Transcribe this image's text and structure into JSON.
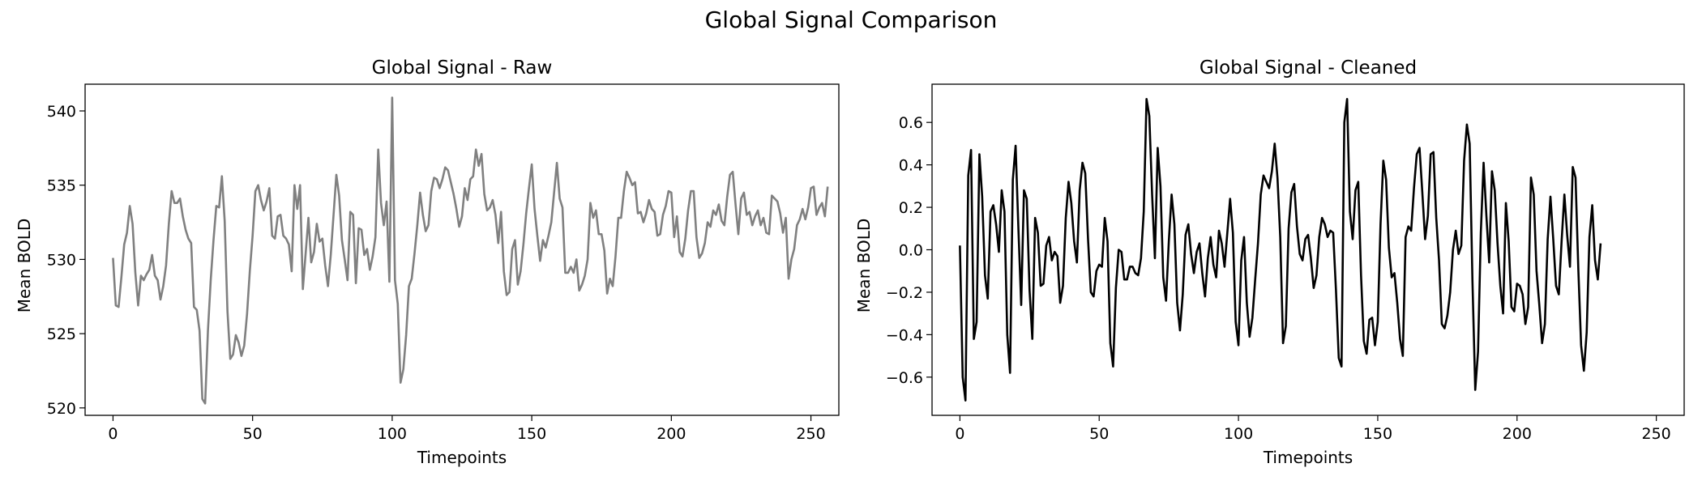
{
  "figure": {
    "title": "Global Signal Comparison"
  },
  "chart_data": [
    {
      "type": "line",
      "title": "Global Signal - Raw",
      "xlabel": "Timepoints",
      "ylabel": "Mean BOLD",
      "xlim": [
        -10,
        260
      ],
      "ylim": [
        519.5,
        541.8
      ],
      "xticks": [
        0,
        50,
        100,
        150,
        200,
        250
      ],
      "yticks": [
        520,
        525,
        530,
        535,
        540
      ],
      "xtick_labels": [
        "0",
        "50",
        "100",
        "150",
        "200",
        "250"
      ],
      "ytick_labels": [
        "520",
        "525",
        "530",
        "535",
        "540"
      ],
      "grid": false,
      "line_color": "#808080",
      "x_start": 0,
      "x_step": 1,
      "series": [
        {
          "values": [
            530.1,
            526.9,
            526.8,
            528.8,
            531.0,
            531.8,
            533.6,
            532.4,
            529.1,
            526.9,
            528.9,
            528.6,
            529.0,
            529.3,
            530.3,
            528.9,
            528.6,
            527.3,
            528.2,
            529.6,
            532.4,
            534.6,
            533.8,
            533.8,
            534.1,
            532.9,
            532.0,
            531.4,
            531.1,
            526.8,
            526.6,
            525.2,
            520.6,
            520.3,
            525.2,
            528.6,
            531.3,
            533.6,
            533.5,
            535.6,
            532.6,
            526.5,
            523.3,
            523.6,
            524.9,
            524.4,
            523.5,
            524.2,
            526.3,
            529.2,
            531.6,
            534.6,
            535.0,
            534.0,
            533.3,
            533.9,
            534.8,
            531.6,
            531.4,
            532.9,
            533.0,
            531.6,
            531.4,
            531.0,
            529.2,
            535.0,
            533.4,
            535.0,
            528.0,
            530.4,
            532.8,
            529.8,
            530.5,
            532.4,
            531.2,
            531.4,
            529.6,
            528.2,
            530.3,
            533.0,
            535.7,
            534.3,
            531.3,
            530.0,
            528.6,
            533.2,
            533.0,
            528.4,
            532.1,
            532.0,
            530.3,
            530.7,
            529.3,
            530.2,
            531.5,
            537.4,
            533.8,
            532.3,
            533.9,
            528.5,
            540.9,
            528.6,
            527.0,
            521.7,
            522.6,
            524.9,
            528.2,
            528.7,
            530.4,
            532.3,
            534.5,
            533.0,
            531.9,
            532.3,
            534.6,
            535.5,
            535.4,
            534.8,
            535.4,
            536.2,
            536.0,
            535.2,
            534.4,
            533.4,
            532.2,
            532.9,
            534.8,
            534.0,
            535.4,
            535.6,
            537.4,
            536.3,
            537.1,
            534.4,
            533.3,
            533.5,
            534.0,
            533.0,
            531.1,
            533.2,
            529.2,
            527.6,
            527.8,
            530.7,
            531.3,
            528.3,
            529.2,
            531.0,
            533.1,
            534.8,
            536.4,
            533.4,
            531.6,
            529.9,
            531.3,
            530.8,
            531.6,
            532.5,
            534.5,
            536.5,
            534.1,
            533.5,
            529.1,
            529.1,
            529.5,
            529.1,
            530.0,
            527.9,
            528.3,
            528.9,
            530.0,
            533.8,
            532.8,
            533.3,
            531.7,
            531.7,
            530.6,
            527.7,
            528.7,
            528.2,
            530.2,
            532.8,
            532.8,
            534.6,
            535.9,
            535.5,
            535.0,
            535.2,
            533.1,
            533.2,
            532.5,
            533.1,
            534.0,
            533.4,
            533.2,
            531.6,
            531.7,
            533.0,
            533.6,
            534.6,
            534.5,
            531.5,
            532.9,
            530.5,
            530.2,
            531.4,
            533.3,
            534.6,
            534.6,
            531.5,
            530.1,
            530.4,
            531.1,
            532.5,
            532.2,
            533.3,
            533.0,
            533.7,
            532.6,
            532.3,
            534.2,
            535.7,
            535.9,
            533.7,
            531.7,
            534.1,
            534.5,
            533.0,
            533.2,
            532.3,
            532.9,
            533.3,
            532.3,
            532.8,
            531.8,
            531.7,
            534.3,
            534.1,
            533.9,
            533.1,
            531.8,
            532.8,
            528.7,
            530.0,
            530.7,
            532.3,
            532.7,
            533.4,
            532.7,
            533.5,
            534.8,
            534.9,
            533.0,
            533.5,
            533.8,
            532.9,
            534.9
          ]
        }
      ]
    },
    {
      "type": "line",
      "title": "Global Signal - Cleaned",
      "xlabel": "Timepoints",
      "ylabel": "Mean BOLD",
      "xlim": [
        -10,
        260
      ],
      "ylim": [
        -0.78,
        0.78
      ],
      "xticks": [
        0,
        50,
        100,
        150,
        200,
        250
      ],
      "yticks": [
        -0.6,
        -0.4,
        -0.2,
        0.0,
        0.2,
        0.4,
        0.6
      ],
      "xtick_labels": [
        "0",
        "50",
        "100",
        "150",
        "200",
        "250"
      ],
      "ytick_labels": [
        "−0.6",
        "−0.4",
        "−0.2",
        "0.0",
        "0.2",
        "0.4",
        "0.6"
      ],
      "grid": false,
      "line_color": "#000000",
      "x_start": 0,
      "x_step": 1,
      "series": [
        {
          "values": [
            0.02,
            -0.6,
            -0.71,
            0.35,
            0.47,
            -0.42,
            -0.34,
            0.45,
            0.25,
            -0.12,
            -0.23,
            0.18,
            0.21,
            0.12,
            -0.01,
            0.28,
            0.18,
            -0.4,
            -0.58,
            0.33,
            0.49,
            0.1,
            -0.26,
            0.28,
            0.24,
            -0.19,
            -0.42,
            0.15,
            0.08,
            -0.17,
            -0.16,
            0.02,
            0.06,
            -0.05,
            -0.01,
            -0.03,
            -0.25,
            -0.17,
            0.15,
            0.32,
            0.22,
            0.04,
            -0.06,
            0.28,
            0.41,
            0.36,
            0.05,
            -0.2,
            -0.22,
            -0.1,
            -0.07,
            -0.08,
            0.15,
            0.04,
            -0.44,
            -0.55,
            -0.18,
            0.0,
            -0.01,
            -0.14,
            -0.14,
            -0.08,
            -0.08,
            -0.11,
            -0.12,
            -0.04,
            0.18,
            0.71,
            0.63,
            0.26,
            -0.04,
            0.48,
            0.3,
            -0.13,
            -0.24,
            0.04,
            0.26,
            0.12,
            -0.25,
            -0.38,
            -0.21,
            0.07,
            0.12,
            -0.02,
            -0.11,
            -0.01,
            0.03,
            -0.11,
            -0.22,
            -0.04,
            0.06,
            -0.07,
            -0.13,
            0.09,
            0.03,
            -0.08,
            0.08,
            0.24,
            0.08,
            -0.34,
            -0.45,
            -0.05,
            0.06,
            -0.25,
            -0.41,
            -0.32,
            -0.14,
            0.03,
            0.26,
            0.35,
            0.32,
            0.29,
            0.37,
            0.5,
            0.34,
            0.06,
            -0.44,
            -0.36,
            0.1,
            0.27,
            0.31,
            0.11,
            -0.02,
            -0.05,
            0.05,
            0.07,
            -0.04,
            -0.18,
            -0.12,
            0.06,
            0.15,
            0.12,
            0.06,
            0.09,
            0.08,
            -0.19,
            -0.51,
            -0.55,
            0.6,
            0.71,
            0.18,
            0.05,
            0.28,
            0.32,
            -0.12,
            -0.43,
            -0.49,
            -0.33,
            -0.32,
            -0.45,
            -0.34,
            0.12,
            0.42,
            0.33,
            0.01,
            -0.13,
            -0.11,
            -0.25,
            -0.42,
            -0.5,
            0.06,
            0.11,
            0.09,
            0.29,
            0.45,
            0.48,
            0.27,
            0.05,
            0.16,
            0.45,
            0.46,
            0.15,
            -0.05,
            -0.35,
            -0.37,
            -0.31,
            -0.2,
            0.0,
            0.09,
            -0.02,
            0.02,
            0.42,
            0.59,
            0.5,
            -0.15,
            -0.66,
            -0.48,
            0.08,
            0.41,
            0.16,
            -0.06,
            0.37,
            0.28,
            0.03,
            -0.17,
            -0.3,
            0.22,
            0.04,
            -0.27,
            -0.29,
            -0.16,
            -0.17,
            -0.21,
            -0.35,
            -0.27,
            0.34,
            0.26,
            -0.1,
            -0.26,
            -0.44,
            -0.35,
            0.05,
            0.25,
            0.05,
            -0.17,
            -0.21,
            0.04,
            0.26,
            0.07,
            -0.08,
            0.39,
            0.34,
            -0.09,
            -0.45,
            -0.57,
            -0.39,
            0.06,
            0.21,
            -0.05,
            -0.14,
            0.03
          ]
        }
      ]
    }
  ]
}
